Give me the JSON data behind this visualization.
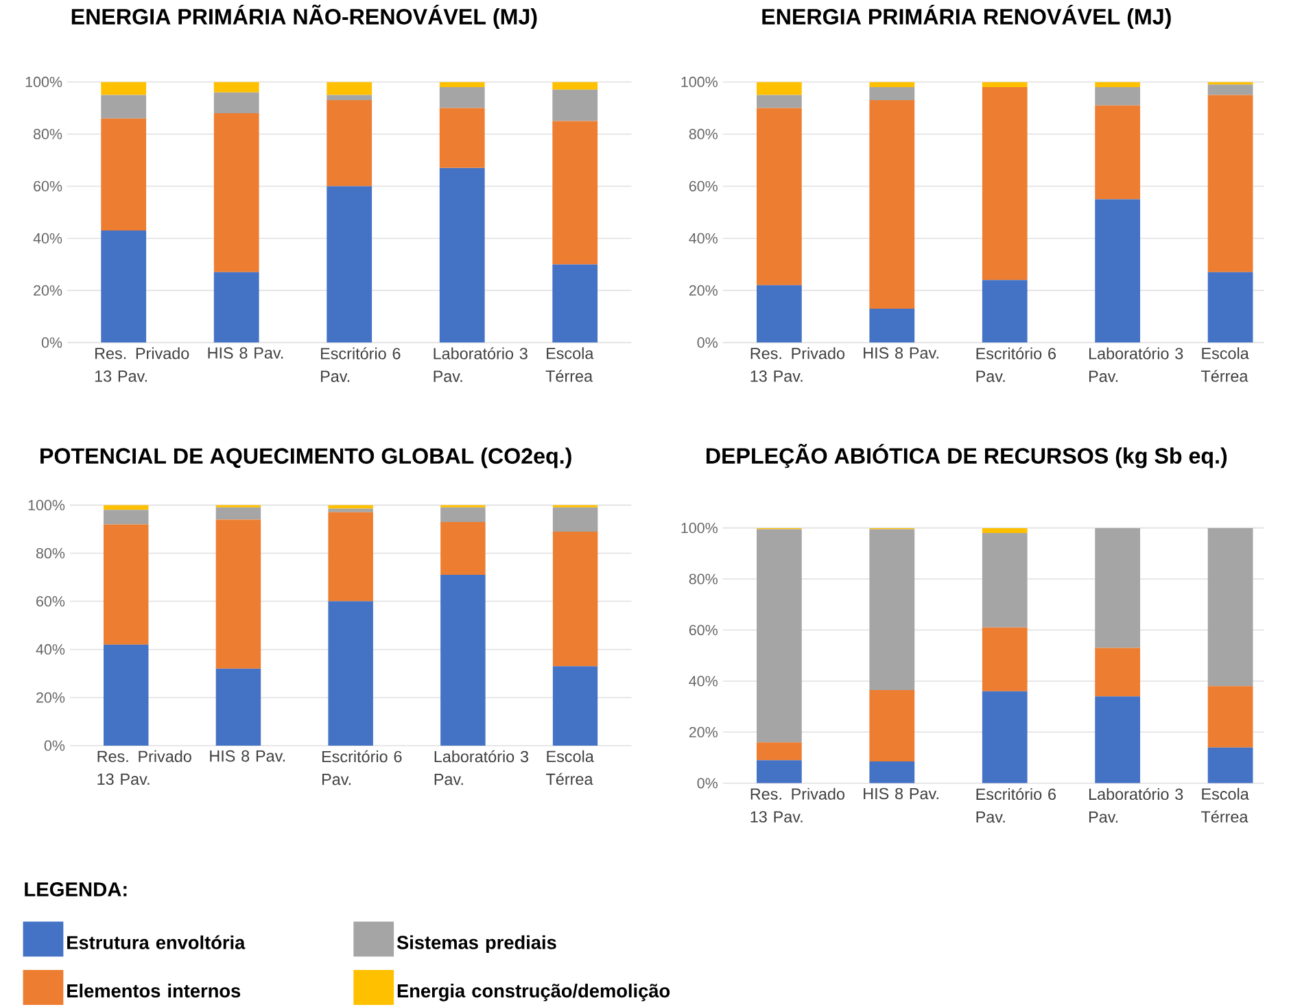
{
  "chart_data": [
    {
      "type": "bar",
      "stacked": true,
      "title": "ENERGIA PRIMÁRIA NÃO-RENOVÁVEL (MJ)",
      "categories": [
        "Res. Privado 13 Pav.",
        "HIS 8 Pav.",
        "Escritório 6 Pav.",
        "Laboratório 3 Pav.",
        "Escola Térrea"
      ],
      "ylim": [
        0,
        100
      ],
      "yticks": [
        {
          "value": 0,
          "label": "0%"
        },
        {
          "value": 20,
          "label": "20%"
        },
        {
          "value": 40,
          "label": "40%"
        },
        {
          "value": 60,
          "label": "60%"
        },
        {
          "value": 80,
          "label": "80%"
        },
        {
          "value": 100,
          "label": "100%"
        }
      ],
      "grid": "y",
      "series": [
        {
          "color": "#4472c4",
          "values": [
            43,
            27,
            60,
            67,
            30
          ]
        },
        {
          "color": "#ed7d31",
          "values": [
            43,
            61,
            33,
            23,
            55
          ]
        },
        {
          "color": "#a5a5a5",
          "values": [
            9,
            8,
            2,
            8,
            12
          ]
        },
        {
          "color": "#ffc000",
          "values": [
            5,
            4,
            5,
            2,
            3
          ]
        }
      ]
    },
    {
      "type": "bar",
      "stacked": true,
      "title": "ENERGIA PRIMÁRIA RENOVÁVEL (MJ)",
      "categories": [
        "Res. Privado 13 Pav.",
        "HIS 8 Pav.",
        "Escritório 6 Pav.",
        "Laboratório 3 Pav.",
        "Escola Térrea"
      ],
      "ylim": [
        0,
        100
      ],
      "yticks": [
        {
          "value": 0,
          "label": "0%"
        },
        {
          "value": 20,
          "label": "20%"
        },
        {
          "value": 40,
          "label": "40%"
        },
        {
          "value": 60,
          "label": "60%"
        },
        {
          "value": 80,
          "label": "80%"
        },
        {
          "value": 100,
          "label": "100%"
        }
      ],
      "grid": "y",
      "series": [
        {
          "color": "#4472c4",
          "values": [
            22,
            13,
            24,
            55,
            27
          ]
        },
        {
          "color": "#ed7d31",
          "values": [
            68,
            80,
            74,
            36,
            68
          ]
        },
        {
          "color": "#a5a5a5",
          "values": [
            5,
            5,
            0,
            7,
            4
          ]
        },
        {
          "color": "#ffc000",
          "values": [
            5,
            2,
            2,
            2,
            1
          ]
        }
      ]
    },
    {
      "type": "bar",
      "stacked": true,
      "title": "POTENCIAL DE AQUECIMENTO GLOBAL (CO2eq.)",
      "categories": [
        "Res. Privado 13 Pav.",
        "HIS 8 Pav.",
        "Escritório 6 Pav.",
        "Laboratório 3 Pav.",
        "Escola Térrea"
      ],
      "ylim": [
        0,
        100
      ],
      "yticks": [
        {
          "value": 0,
          "label": "0%"
        },
        {
          "value": 20,
          "label": "20%"
        },
        {
          "value": 40,
          "label": "40%"
        },
        {
          "value": 60,
          "label": "60%"
        },
        {
          "value": 80,
          "label": "80%"
        },
        {
          "value": 100,
          "label": "100%"
        }
      ],
      "grid": "y",
      "legend": "bottom",
      "legend_title": "LEGENDA:",
      "series": [
        {
          "name": "Estrutura envoltória",
          "color": "#4472c4",
          "values": [
            42,
            32,
            60,
            71,
            33
          ]
        },
        {
          "name": "Elementos internos",
          "color": "#ed7d31",
          "values": [
            50,
            62,
            37,
            22,
            56
          ]
        },
        {
          "name": "Sistemas prediais",
          "color": "#a5a5a5",
          "values": [
            6,
            5,
            1.5,
            6,
            10
          ]
        },
        {
          "name": "Energia construção/demolição",
          "color": "#ffc000",
          "values": [
            2,
            1,
            1.5,
            1,
            1
          ]
        }
      ]
    },
    {
      "type": "bar",
      "stacked": true,
      "title": "DEPLEÇÃO ABIÓTICA DE RECURSOS (kg Sb eq.)",
      "categories": [
        "Res. Privado 13 Pav.",
        "HIS 8 Pav.",
        "Escritório 6 Pav.",
        "Laboratório 3 Pav.",
        "Escola Térrea"
      ],
      "ylim": [
        0,
        100
      ],
      "yticks": [
        {
          "value": 0,
          "label": "0%"
        },
        {
          "value": 20,
          "label": "20%"
        },
        {
          "value": 40,
          "label": "40%"
        },
        {
          "value": 60,
          "label": "60%"
        },
        {
          "value": 80,
          "label": "80%"
        },
        {
          "value": 100,
          "label": "100%"
        }
      ],
      "grid": "y",
      "series": [
        {
          "color": "#4472c4",
          "values": [
            9,
            8.5,
            36,
            34,
            14
          ]
        },
        {
          "color": "#ed7d31",
          "values": [
            7,
            28,
            25,
            19,
            24
          ]
        },
        {
          "color": "#a5a5a5",
          "values": [
            83.5,
            63,
            37,
            47,
            62
          ]
        },
        {
          "color": "#ffc000",
          "values": [
            0.5,
            0.5,
            2,
            0,
            0
          ]
        }
      ]
    }
  ]
}
